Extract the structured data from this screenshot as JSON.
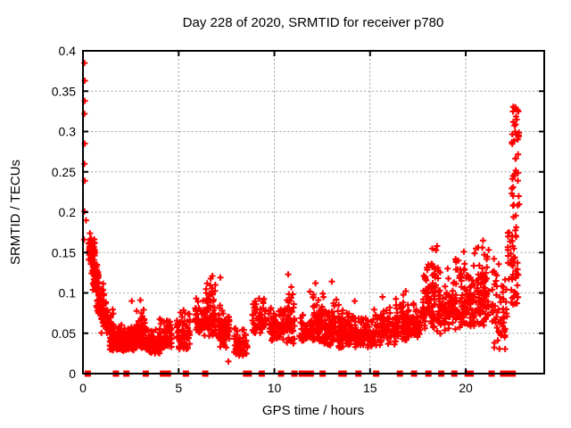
{
  "window": {
    "background": "#ffffff"
  },
  "colors": {
    "marker": "#ff0000",
    "grid": "#9e9e9e",
    "axis": "#000000",
    "text": "#000000",
    "background": "#ffffff"
  },
  "chart_data": {
    "type": "scatter",
    "title": "Day 228 of 2020, SRMTID for receiver p780",
    "xlabel": "GPS time / hours",
    "ylabel": "SRMTID / TECUs",
    "xlim": [
      0,
      24.1
    ],
    "ylim": [
      0,
      0.4
    ],
    "grid": true,
    "legend": false,
    "x_ticks": [
      {
        "v": 0,
        "label": "0"
      },
      {
        "v": 5,
        "label": "5"
      },
      {
        "v": 10,
        "label": "10"
      },
      {
        "v": 15,
        "label": "15"
      },
      {
        "v": 20,
        "label": "20"
      }
    ],
    "y_ticks": [
      {
        "v": 0,
        "label": "0"
      },
      {
        "v": 0.05,
        "label": "0.05"
      },
      {
        "v": 0.1,
        "label": "0.1"
      },
      {
        "v": 0.15,
        "label": "0.15"
      },
      {
        "v": 0.2,
        "label": "0.2"
      },
      {
        "v": 0.25,
        "label": "0.25"
      },
      {
        "v": 0.3,
        "label": "0.3"
      },
      {
        "v": 0.35,
        "label": "0.35"
      },
      {
        "v": 0.4,
        "label": "0.4"
      }
    ],
    "marker": {
      "shape": "plus",
      "color": "#ff0000",
      "size": 7,
      "stroke_width": 2
    },
    "zero_marker": {
      "shape": "filled-square",
      "color": "#ff0000",
      "size": 7
    },
    "seed": 20200816,
    "isolated_points": [
      [
        0.08,
        0.385
      ],
      [
        0.1,
        0.363
      ],
      [
        0.1,
        0.338
      ],
      [
        0.08,
        0.322
      ],
      [
        0.1,
        0.285
      ],
      [
        0.08,
        0.26
      ],
      [
        0.1,
        0.239
      ],
      [
        0.08,
        0.201
      ],
      [
        0.16,
        0.19
      ],
      [
        0.06,
        0.166
      ],
      [
        0.3,
        0.161
      ],
      [
        2.55,
        0.09
      ],
      [
        3.0,
        0.091
      ],
      [
        6.76,
        0.121
      ],
      [
        7.18,
        0.119
      ],
      [
        7.6,
        0.015
      ],
      [
        9.2,
        0.093
      ],
      [
        10.72,
        0.123
      ],
      [
        12.15,
        0.112
      ],
      [
        13.0,
        0.114
      ],
      [
        14.2,
        0.09
      ],
      [
        15.65,
        0.095
      ],
      [
        18.25,
        0.155
      ],
      [
        18.5,
        0.158
      ],
      [
        19.9,
        0.151
      ],
      [
        20.9,
        0.165
      ],
      [
        22.6,
        0.33
      ]
    ],
    "zero_marker_hours": [
      0.25,
      1.72,
      2.27,
      3.28,
      4.18,
      4.44,
      5.38,
      6.39,
      8.52,
      8.66,
      9.34,
      10.35,
      11.05,
      11.44,
      11.67,
      11.9,
      12.52,
      13.5,
      13.62,
      14.39,
      15.32,
      16.56,
      17.3,
      18.05,
      18.72,
      19.4,
      20.1,
      20.26,
      21.35,
      21.95,
      22.1,
      22.3,
      22.45
    ],
    "clusters": [
      {
        "x0": 0.3,
        "x1": 0.62,
        "y0": 0.135,
        "y1": 0.178,
        "n": 50,
        "dist": "low"
      },
      {
        "x0": 0.45,
        "x1": 0.82,
        "y0": 0.1,
        "y1": 0.15,
        "n": 45,
        "dist": "low"
      },
      {
        "x0": 0.7,
        "x1": 1.1,
        "y0": 0.072,
        "y1": 0.118,
        "n": 45,
        "dist": "low"
      },
      {
        "x0": 0.95,
        "x1": 1.6,
        "y0": 0.048,
        "y1": 0.092,
        "n": 60,
        "dist": "low"
      },
      {
        "x0": 1.4,
        "x1": 2.2,
        "y0": 0.028,
        "y1": 0.062,
        "n": 110,
        "dist": "low"
      },
      {
        "x0": 2.1,
        "x1": 2.85,
        "y0": 0.028,
        "y1": 0.058,
        "n": 110,
        "dist": "low"
      },
      {
        "x0": 2.8,
        "x1": 3.25,
        "y0": 0.032,
        "y1": 0.08,
        "n": 70,
        "dist": "low"
      },
      {
        "x0": 3.25,
        "x1": 4.05,
        "y0": 0.025,
        "y1": 0.058,
        "n": 85,
        "dist": "low"
      },
      {
        "x0": 4.0,
        "x1": 4.65,
        "y0": 0.03,
        "y1": 0.072,
        "n": 75,
        "dist": "low"
      },
      {
        "x0": 4.9,
        "x1": 5.6,
        "y0": 0.03,
        "y1": 0.082,
        "n": 70,
        "dist": "low"
      },
      {
        "x0": 5.85,
        "x1": 6.35,
        "y0": 0.048,
        "y1": 0.098,
        "n": 55,
        "dist": "low"
      },
      {
        "x0": 6.35,
        "x1": 6.95,
        "y0": 0.045,
        "y1": 0.125,
        "n": 70,
        "dist": "low"
      },
      {
        "x0": 6.95,
        "x1": 7.65,
        "y0": 0.03,
        "y1": 0.095,
        "n": 70,
        "dist": "low"
      },
      {
        "x0": 7.9,
        "x1": 8.6,
        "y0": 0.022,
        "y1": 0.06,
        "n": 55,
        "dist": "low"
      },
      {
        "x0": 8.85,
        "x1": 9.6,
        "y0": 0.05,
        "y1": 0.095,
        "n": 60,
        "dist": "low"
      },
      {
        "x0": 9.7,
        "x1": 10.4,
        "y0": 0.04,
        "y1": 0.085,
        "n": 60,
        "dist": "low"
      },
      {
        "x0": 10.4,
        "x1": 11.05,
        "y0": 0.035,
        "y1": 0.12,
        "n": 65,
        "dist": "low"
      },
      {
        "x0": 11.3,
        "x1": 11.75,
        "y0": 0.04,
        "y1": 0.075,
        "n": 40,
        "dist": "low"
      },
      {
        "x0": 11.85,
        "x1": 12.6,
        "y0": 0.038,
        "y1": 0.108,
        "n": 85,
        "dist": "low"
      },
      {
        "x0": 12.6,
        "x1": 13.4,
        "y0": 0.035,
        "y1": 0.095,
        "n": 90,
        "dist": "low"
      },
      {
        "x0": 13.35,
        "x1": 14.25,
        "y0": 0.032,
        "y1": 0.082,
        "n": 90,
        "dist": "low"
      },
      {
        "x0": 14.25,
        "x1": 15.2,
        "y0": 0.032,
        "y1": 0.076,
        "n": 90,
        "dist": "low"
      },
      {
        "x0": 15.2,
        "x1": 16.35,
        "y0": 0.035,
        "y1": 0.09,
        "n": 95,
        "dist": "low"
      },
      {
        "x0": 16.35,
        "x1": 17.1,
        "y0": 0.04,
        "y1": 0.105,
        "n": 85,
        "dist": "low"
      },
      {
        "x0": 17.15,
        "x1": 17.7,
        "y0": 0.045,
        "y1": 0.092,
        "n": 50,
        "dist": "low"
      },
      {
        "x0": 17.75,
        "x1": 18.45,
        "y0": 0.055,
        "y1": 0.158,
        "n": 85,
        "dist": "low"
      },
      {
        "x0": 18.5,
        "x1": 19.3,
        "y0": 0.048,
        "y1": 0.135,
        "n": 85,
        "dist": "low"
      },
      {
        "x0": 19.3,
        "x1": 20.4,
        "y0": 0.055,
        "y1": 0.15,
        "n": 115,
        "dist": "low"
      },
      {
        "x0": 20.4,
        "x1": 21.2,
        "y0": 0.058,
        "y1": 0.163,
        "n": 100,
        "dist": "low"
      },
      {
        "x0": 21.35,
        "x1": 22.15,
        "y0": 0.03,
        "y1": 0.158,
        "n": 60,
        "dist": "low"
      },
      {
        "x0": 22.2,
        "x1": 22.75,
        "y0": 0.085,
        "y1": 0.19,
        "n": 50,
        "dist": "uniform"
      },
      {
        "x0": 22.4,
        "x1": 22.8,
        "y0": 0.19,
        "y1": 0.335,
        "n": 42,
        "dist": "uniform"
      }
    ]
  }
}
